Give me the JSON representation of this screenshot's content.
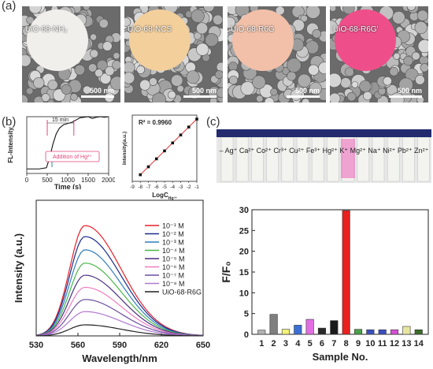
{
  "panel_a": {
    "label": "(a)",
    "images": [
      {
        "label": "UiO-68-NH₂",
        "disk_color": "#f1efec",
        "scale": "500 nm"
      },
      {
        "label": "UiO-68-NCS",
        "disk_color": "#f3cf9c",
        "scale": "500 nm"
      },
      {
        "label": "UiO-68-R6G",
        "disk_color": "#f2c0a8",
        "scale": "500 nm"
      },
      {
        "label": "UiO-68-R6G'",
        "disk_color": "#ee4f8a",
        "scale": "500 nm"
      }
    ]
  },
  "panel_b": {
    "label": "(b)"
  },
  "panel_c": {
    "label": "(c)",
    "vial_labels": "–  Ag⁺ Ca²⁺ Co²⁺ Cr³⁺ Cu²⁺ Fe³⁺ Hg²⁺ K⁺ Mg²⁺ Na⁺ Ni²⁺ Pb²⁺ Zn²⁺"
  },
  "chart_data": [
    {
      "type": "line",
      "ylabel": "FL-Intensity",
      "xlabel": "Time (s)",
      "xlim": [
        0,
        2000
      ],
      "x_ticks": [
        "0",
        "500",
        "1000",
        "1500",
        "2000"
      ],
      "annotations": [
        "15 min",
        "Addition of Hg²⁺"
      ],
      "series": [
        {
          "x": [
            0,
            300,
            480,
            560,
            640,
            720,
            800,
            900,
            1000,
            1100,
            1200,
            1300,
            1400,
            1500,
            1600,
            1700,
            1800,
            1900,
            2000
          ],
          "y": [
            0.08,
            0.08,
            0.1,
            0.28,
            0.52,
            0.7,
            0.8,
            0.86,
            0.88,
            0.9,
            0.94,
            0.98,
            0.99,
            1.0,
            0.97,
            0.99,
            1.0,
            0.99,
            1.0
          ]
        }
      ]
    },
    {
      "type": "scatter",
      "ylabel": "Intensity(a.u.)",
      "xlabel": "LogC",
      "xlabel_sub": "Hg²⁺",
      "xlim": [
        -9,
        -1
      ],
      "x_ticks": [
        "-9",
        "-8",
        "-7",
        "-6",
        "-5",
        "-4",
        "-3",
        "-2",
        "-1"
      ],
      "annotation": "R² = 0.9960",
      "x": [
        -8,
        -7,
        -6,
        -5,
        -4,
        -3,
        -2,
        -1
      ],
      "y": [
        0.1,
        0.22,
        0.34,
        0.46,
        0.58,
        0.7,
        0.82,
        0.94
      ]
    },
    {
      "type": "line",
      "ylabel": "Intensity (a.u.)",
      "xlabel": "Wavelength/nm",
      "xlim": [
        530,
        650
      ],
      "x_ticks": [
        "530",
        "560",
        "590",
        "620",
        "650"
      ],
      "peak": 565,
      "series": [
        {
          "name": "10⁻¹ M",
          "color": "#e8202a",
          "amp": 1.0
        },
        {
          "name": "10⁻² M",
          "color": "#1a2b8c",
          "amp": 0.9
        },
        {
          "name": "10⁻³ M",
          "color": "#2f7dbd",
          "amp": 0.78
        },
        {
          "name": "10⁻⁴ M",
          "color": "#49b749",
          "amp": 0.66
        },
        {
          "name": "10⁻⁵ M",
          "color": "#4a2d83",
          "amp": 0.55
        },
        {
          "name": "10⁻⁶ M",
          "color": "#f07cc0",
          "amp": 0.44
        },
        {
          "name": "10⁻⁷ M",
          "color": "#6a4fa0",
          "amp": 0.33
        },
        {
          "name": "10⁻⁸ M",
          "color": "#b07ad0",
          "amp": 0.22
        },
        {
          "name": "UiO-68-R6G",
          "color": "#222222",
          "amp": 0.1
        }
      ]
    },
    {
      "type": "bar",
      "ylabel": "F/F₀",
      "xlabel": "Sample No.",
      "ylim": [
        0,
        30
      ],
      "y_ticks": [
        "0",
        "5",
        "10",
        "15",
        "20",
        "25",
        "30"
      ],
      "categories": [
        "1",
        "2",
        "3",
        "4",
        "5",
        "6",
        "7",
        "8",
        "9",
        "10",
        "11",
        "12",
        "13",
        "14"
      ],
      "values": [
        1.0,
        4.8,
        1.2,
        2.2,
        3.6,
        1.5,
        3.3,
        29.8,
        1.2,
        1.1,
        1.1,
        1.1,
        1.9,
        1.1
      ],
      "colors": [
        "#b3b3b3",
        "#7f7f7f",
        "#f2f27a",
        "#3b6fd4",
        "#e36ee3",
        "#2a2a2a",
        "#1a1a1a",
        "#e8201e",
        "#4aa048",
        "#3a4fbf",
        "#3a4fbf",
        "#d64fd6",
        "#e6e6a0",
        "#3b6b2a"
      ]
    }
  ]
}
